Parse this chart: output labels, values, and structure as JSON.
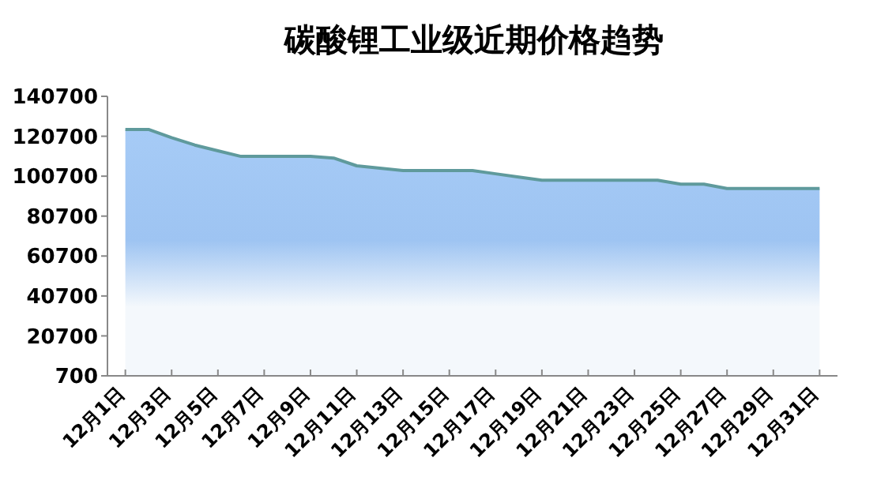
{
  "chart_data": {
    "type": "area",
    "title": "碳酸锂工业级近期价格趋势",
    "categories": [
      "12月1日",
      null,
      "12月3日",
      null,
      "12月5日",
      null,
      "12月7日",
      null,
      "12月9日",
      null,
      "12月11日",
      null,
      "12月13日",
      null,
      "12月15日",
      null,
      "12月17日",
      null,
      "12月19日",
      null,
      "12月21日",
      null,
      "12月23日",
      null,
      "12月25日",
      null,
      "12月27日",
      null,
      "12月29日",
      null,
      "12月31日"
    ],
    "series": [
      {
        "color": "#5f9a9c",
        "values": [
          124100,
          124100,
          120000,
          116300,
          113400,
          110600,
          110600,
          110600,
          110600,
          109800,
          105900,
          104700,
          103500,
          103500,
          103500,
          103500,
          101900,
          100300,
          98700,
          98700,
          98700,
          98700,
          98700,
          98700,
          96700,
          96700,
          94500,
          94500,
          94500,
          94500,
          94500
        ]
      }
    ],
    "ylim": [
      700,
      140700
    ],
    "yticks": [
      700,
      20700,
      40700,
      60700,
      80700,
      100700,
      120700,
      140700
    ],
    "grid": false
  }
}
